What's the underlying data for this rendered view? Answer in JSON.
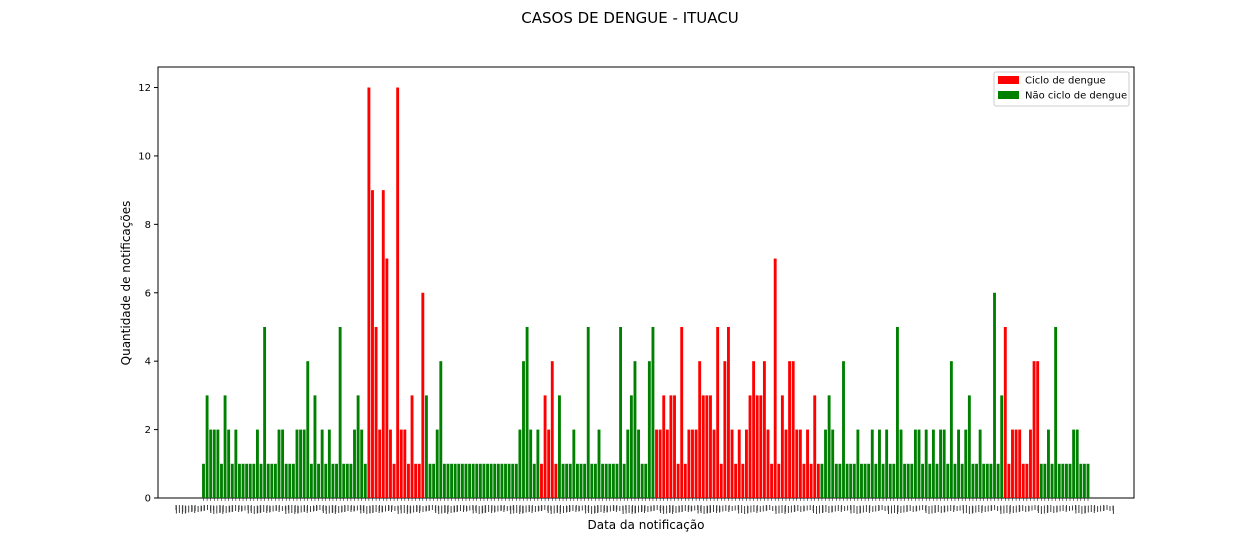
{
  "chart_data": {
    "type": "bar",
    "title": "CASOS DE DENGUE - ITUACU",
    "xlabel": "Data da notificação",
    "ylabel": "Quantidade de notificações",
    "ylim": [
      0,
      12.6
    ],
    "yticks": [
      0,
      2,
      4,
      6,
      8,
      10,
      12
    ],
    "x_tick_labels_note": "dense overlapping date labels, illegible",
    "legend_position": "top-right",
    "series": [
      {
        "name": "Ciclo de dengue",
        "color": "#ff0000"
      },
      {
        "name": "Não ciclo de dengue",
        "color": "#008000"
      }
    ],
    "red_ranges": [
      [
        46,
        61
      ],
      [
        94,
        98
      ],
      [
        126,
        171
      ],
      [
        223,
        232
      ]
    ],
    "values": [
      1,
      3,
      2,
      2,
      2,
      1,
      3,
      2,
      1,
      2,
      1,
      1,
      1,
      1,
      1,
      2,
      1,
      5,
      1,
      1,
      1,
      2,
      2,
      1,
      1,
      1,
      2,
      2,
      2,
      4,
      1,
      3,
      1,
      2,
      1,
      2,
      1,
      1,
      5,
      1,
      1,
      1,
      2,
      3,
      2,
      1,
      12,
      9,
      5,
      2,
      9,
      7,
      2,
      1,
      12,
      2,
      2,
      1,
      3,
      1,
      1,
      6,
      3,
      1,
      1,
      2,
      4,
      1,
      1,
      1,
      1,
      1,
      1,
      1,
      1,
      1,
      1,
      1,
      1,
      1,
      1,
      1,
      1,
      1,
      1,
      1,
      1,
      1,
      2,
      4,
      5,
      2,
      1,
      2,
      1,
      3,
      2,
      4,
      1,
      3,
      1,
      1,
      1,
      2,
      1,
      1,
      1,
      5,
      1,
      1,
      2,
      1,
      1,
      1,
      1,
      1,
      5,
      1,
      2,
      3,
      4,
      2,
      1,
      1,
      4,
      5,
      2,
      2,
      3,
      2,
      3,
      3,
      1,
      5,
      1,
      2,
      2,
      2,
      4,
      3,
      3,
      3,
      2,
      5,
      1,
      4,
      5,
      2,
      1,
      2,
      1,
      2,
      3,
      4,
      3,
      3,
      4,
      2,
      1,
      7,
      1,
      3,
      2,
      4,
      4,
      2,
      2,
      1,
      2,
      1,
      3,
      1,
      1,
      2,
      3,
      2,
      1,
      1,
      4,
      1,
      1,
      1,
      2,
      1,
      1,
      1,
      2,
      1,
      2,
      1,
      2,
      1,
      1,
      5,
      2,
      1,
      1,
      1,
      2,
      2,
      1,
      2,
      1,
      2,
      1,
      2,
      2,
      1,
      4,
      1,
      2,
      1,
      2,
      3,
      1,
      1,
      2,
      1,
      1,
      1,
      6,
      1,
      3,
      5,
      1,
      2,
      2,
      2,
      1,
      1,
      2,
      4,
      4,
      1,
      1,
      2,
      1,
      5,
      1,
      1,
      1,
      1,
      2,
      2,
      1,
      1,
      1
    ]
  },
  "colors": {
    "red": "#ff0000",
    "green": "#008000",
    "background": "#ffffff",
    "axis": "#000000"
  }
}
